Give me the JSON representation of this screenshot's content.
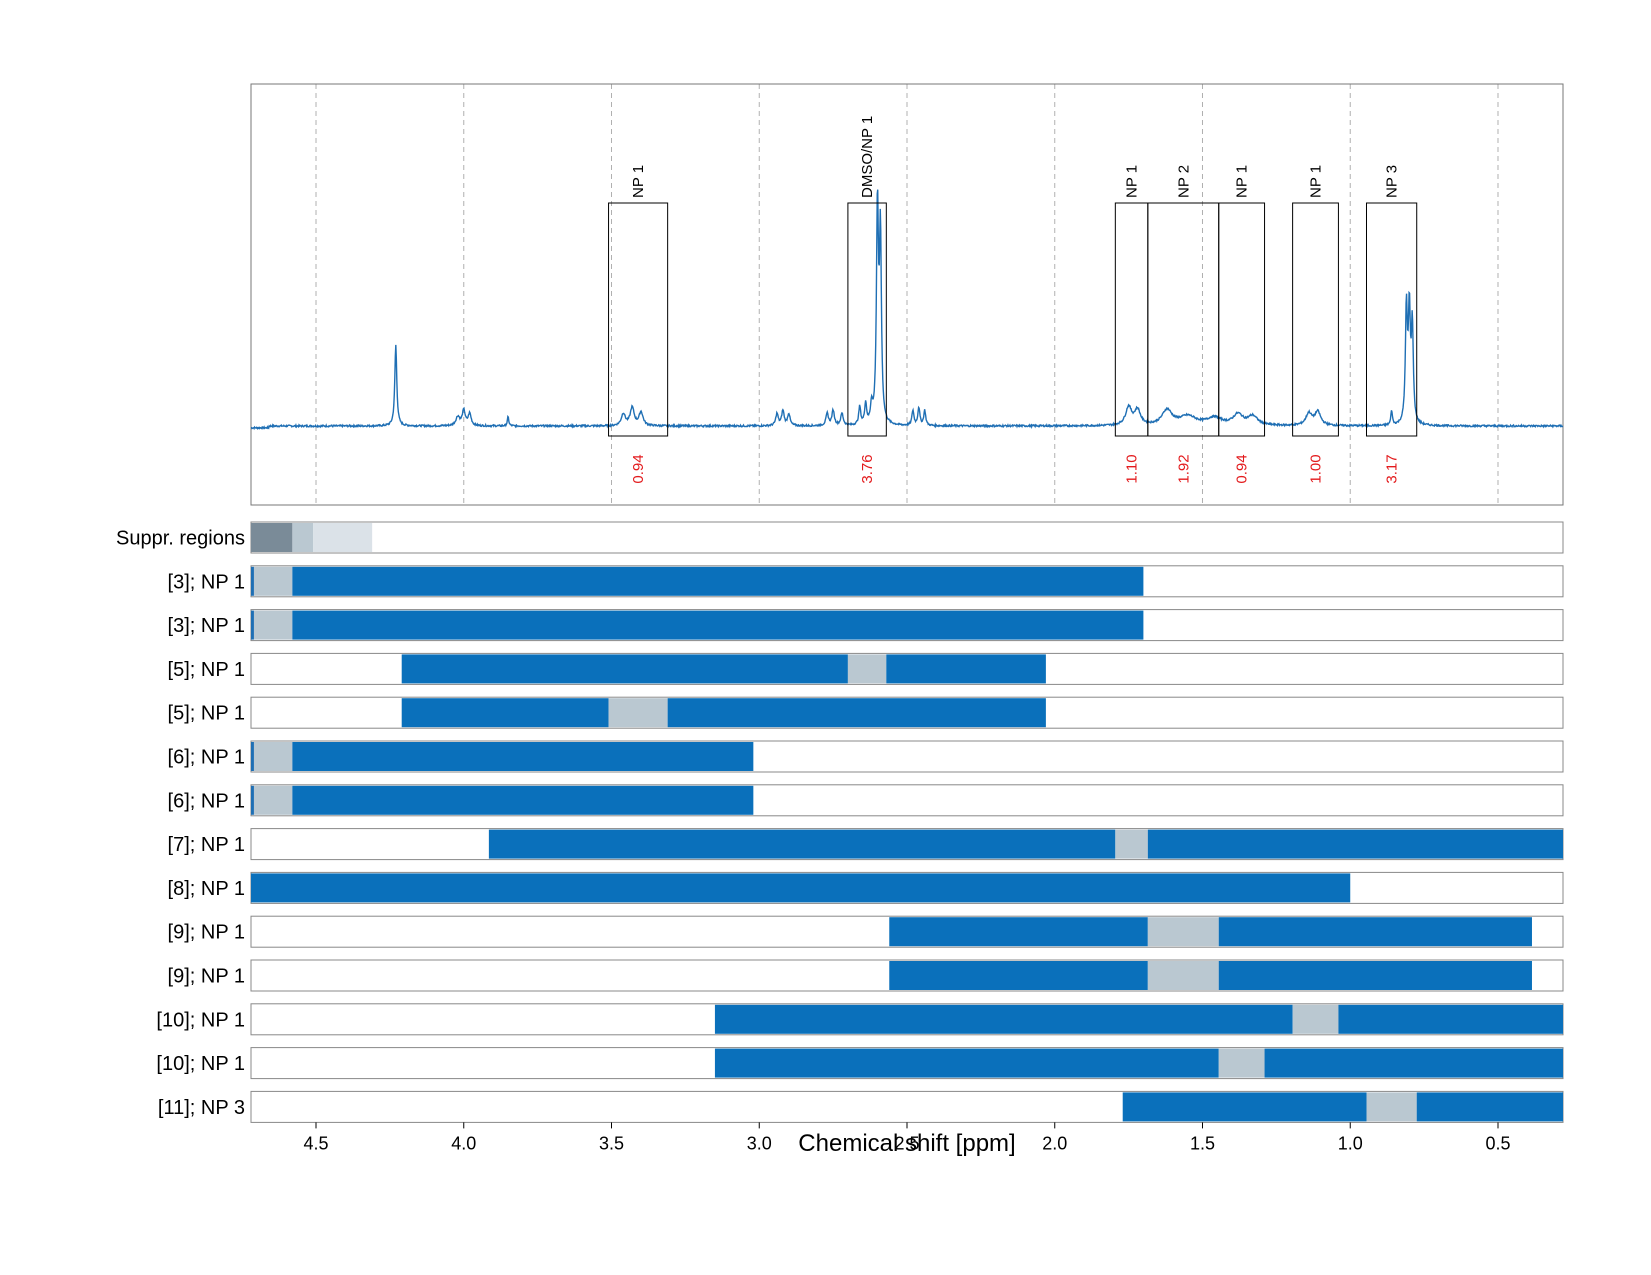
{
  "chart_data": {
    "type": "line",
    "xlabel": "Chemical shift [ppm]",
    "xlim": [
      4.72,
      0.28
    ],
    "x_reversed": true,
    "xticks": [
      4.5,
      4.0,
      3.5,
      3.0,
      2.5,
      2.0,
      1.5,
      1.0,
      0.5
    ],
    "xtick_labels": [
      "4.5",
      "4.0",
      "3.5",
      "3.0",
      "2.5",
      "2.0",
      "1.5",
      "1.0",
      "0.5"
    ],
    "grid": "vertical dashed",
    "spectrum_color": "#1f6fb4",
    "integral_color": "#e31a1c",
    "spectrum_peaks": [
      {
        "ppm": 4.23,
        "height": 0.27,
        "width": 0.004
      },
      {
        "ppm": 4.02,
        "height": 0.03,
        "width": 0.008
      },
      {
        "ppm": 4.0,
        "height": 0.05,
        "width": 0.006
      },
      {
        "ppm": 3.98,
        "height": 0.04,
        "width": 0.006
      },
      {
        "ppm": 3.85,
        "height": 0.03,
        "width": 0.003
      },
      {
        "ppm": 3.46,
        "height": 0.04,
        "width": 0.008
      },
      {
        "ppm": 3.43,
        "height": 0.06,
        "width": 0.008
      },
      {
        "ppm": 3.4,
        "height": 0.045,
        "width": 0.008
      },
      {
        "ppm": 2.94,
        "height": 0.04,
        "width": 0.005
      },
      {
        "ppm": 2.92,
        "height": 0.05,
        "width": 0.005
      },
      {
        "ppm": 2.9,
        "height": 0.04,
        "width": 0.005
      },
      {
        "ppm": 2.77,
        "height": 0.04,
        "width": 0.005
      },
      {
        "ppm": 2.75,
        "height": 0.05,
        "width": 0.005
      },
      {
        "ppm": 2.72,
        "height": 0.04,
        "width": 0.005
      },
      {
        "ppm": 2.66,
        "height": 0.06,
        "width": 0.004
      },
      {
        "ppm": 2.64,
        "height": 0.07,
        "width": 0.004
      },
      {
        "ppm": 2.62,
        "height": 0.06,
        "width": 0.004
      },
      {
        "ppm": 2.6,
        "height": 0.72,
        "width": 0.004
      },
      {
        "ppm": 2.59,
        "height": 0.62,
        "width": 0.004
      },
      {
        "ppm": 2.48,
        "height": 0.05,
        "width": 0.004
      },
      {
        "ppm": 2.46,
        "height": 0.06,
        "width": 0.004
      },
      {
        "ppm": 2.44,
        "height": 0.05,
        "width": 0.004
      },
      {
        "ppm": 1.75,
        "height": 0.06,
        "width": 0.012
      },
      {
        "ppm": 1.72,
        "height": 0.05,
        "width": 0.012
      },
      {
        "ppm": 1.62,
        "height": 0.05,
        "width": 0.02
      },
      {
        "ppm": 1.55,
        "height": 0.03,
        "width": 0.035
      },
      {
        "ppm": 1.46,
        "height": 0.025,
        "width": 0.03
      },
      {
        "ppm": 1.38,
        "height": 0.035,
        "width": 0.02
      },
      {
        "ppm": 1.33,
        "height": 0.03,
        "width": 0.02
      },
      {
        "ppm": 1.14,
        "height": 0.04,
        "width": 0.012
      },
      {
        "ppm": 1.11,
        "height": 0.045,
        "width": 0.012
      },
      {
        "ppm": 0.86,
        "height": 0.05,
        "width": 0.003
      },
      {
        "ppm": 0.81,
        "height": 0.38,
        "width": 0.004
      },
      {
        "ppm": 0.8,
        "height": 0.36,
        "width": 0.004
      },
      {
        "ppm": 0.79,
        "height": 0.32,
        "width": 0.004
      }
    ],
    "peak_annotations": [
      {
        "label": "NP 1",
        "ppm_from": 3.51,
        "ppm_to": 3.31,
        "integral": "0.94"
      },
      {
        "label": "DMSO/NP 1",
        "ppm_from": 2.7,
        "ppm_to": 2.57,
        "integral": "3.76"
      },
      {
        "label": "NP 1",
        "ppm_from": 1.795,
        "ppm_to": 1.685,
        "integral": "1.10"
      },
      {
        "label": "NP 2",
        "ppm_from": 1.685,
        "ppm_to": 1.445,
        "integral": "1.92"
      },
      {
        "label": "NP 1",
        "ppm_from": 1.445,
        "ppm_to": 1.29,
        "integral": "0.94"
      },
      {
        "label": "NP 1",
        "ppm_from": 1.195,
        "ppm_to": 1.04,
        "integral": "1.00"
      },
      {
        "label": "NP 3",
        "ppm_from": 0.945,
        "ppm_to": 0.775,
        "integral": "3.17"
      }
    ],
    "rows": [
      {
        "label": "Suppr. regions",
        "segments": [
          {
            "from": 4.72,
            "to": 4.58,
            "color": "#7a8b98"
          },
          {
            "from": 4.58,
            "to": 4.51,
            "color": "#bac8d1"
          },
          {
            "from": 4.51,
            "to": 4.31,
            "color": "#dbe2e8"
          }
        ]
      },
      {
        "label": "[3]; NP 1",
        "segments": [
          {
            "from": 4.72,
            "to": 4.71,
            "color": "#1f6fb4"
          },
          {
            "from": 4.71,
            "to": 4.58,
            "color": "#bac8d1"
          },
          {
            "from": 4.58,
            "to": 1.7,
            "color": "#0a70bb"
          }
        ]
      },
      {
        "label": "[3]; NP 1",
        "segments": [
          {
            "from": 4.72,
            "to": 4.71,
            "color": "#1f6fb4"
          },
          {
            "from": 4.71,
            "to": 4.58,
            "color": "#bac8d1"
          },
          {
            "from": 4.58,
            "to": 1.7,
            "color": "#0a70bb"
          }
        ]
      },
      {
        "label": "[5]; NP 1",
        "segments": [
          {
            "from": 4.21,
            "to": 2.7,
            "color": "#0a70bb"
          },
          {
            "from": 2.7,
            "to": 2.57,
            "color": "#bac8d1"
          },
          {
            "from": 2.57,
            "to": 2.03,
            "color": "#0a70bb"
          }
        ]
      },
      {
        "label": "[5]; NP 1",
        "segments": [
          {
            "from": 4.21,
            "to": 3.51,
            "color": "#0a70bb"
          },
          {
            "from": 3.51,
            "to": 3.31,
            "color": "#bac8d1"
          },
          {
            "from": 3.31,
            "to": 2.03,
            "color": "#0a70bb"
          }
        ]
      },
      {
        "label": "[6]; NP 1",
        "segments": [
          {
            "from": 4.72,
            "to": 4.71,
            "color": "#1f6fb4"
          },
          {
            "from": 4.71,
            "to": 4.58,
            "color": "#bac8d1"
          },
          {
            "from": 4.58,
            "to": 3.02,
            "color": "#0a70bb"
          }
        ]
      },
      {
        "label": "[6]; NP 1",
        "segments": [
          {
            "from": 4.72,
            "to": 4.71,
            "color": "#1f6fb4"
          },
          {
            "from": 4.71,
            "to": 4.58,
            "color": "#bac8d1"
          },
          {
            "from": 4.58,
            "to": 3.02,
            "color": "#0a70bb"
          }
        ]
      },
      {
        "label": "[7]; NP 1",
        "segments": [
          {
            "from": 3.915,
            "to": 1.795,
            "color": "#0a70bb"
          },
          {
            "from": 1.795,
            "to": 1.685,
            "color": "#bac8d1"
          },
          {
            "from": 1.685,
            "to": 0.28,
            "color": "#0a70bb"
          }
        ]
      },
      {
        "label": "[8]; NP 1",
        "segments": [
          {
            "from": 4.72,
            "to": 1.0,
            "color": "#0a70bb"
          }
        ]
      },
      {
        "label": "[9]; NP 1",
        "segments": [
          {
            "from": 2.56,
            "to": 1.685,
            "color": "#0a70bb"
          },
          {
            "from": 1.685,
            "to": 1.445,
            "color": "#bac8d1"
          },
          {
            "from": 1.445,
            "to": 0.385,
            "color": "#0a70bb"
          }
        ]
      },
      {
        "label": "[9]; NP 1",
        "segments": [
          {
            "from": 2.56,
            "to": 1.685,
            "color": "#0a70bb"
          },
          {
            "from": 1.685,
            "to": 1.445,
            "color": "#bac8d1"
          },
          {
            "from": 1.445,
            "to": 0.385,
            "color": "#0a70bb"
          }
        ]
      },
      {
        "label": "[10]; NP 1",
        "segments": [
          {
            "from": 3.15,
            "to": 1.195,
            "color": "#0a70bb"
          },
          {
            "from": 1.195,
            "to": 1.04,
            "color": "#bac8d1"
          },
          {
            "from": 1.04,
            "to": 0.28,
            "color": "#0a70bb"
          }
        ]
      },
      {
        "label": "[10]; NP 1",
        "segments": [
          {
            "from": 3.15,
            "to": 1.445,
            "color": "#0a70bb"
          },
          {
            "from": 1.445,
            "to": 1.29,
            "color": "#bac8d1"
          },
          {
            "from": 1.29,
            "to": 0.28,
            "color": "#0a70bb"
          }
        ]
      },
      {
        "label": "[11]; NP 3",
        "segments": [
          {
            "from": 1.77,
            "to": 0.945,
            "color": "#0a70bb"
          },
          {
            "from": 0.945,
            "to": 0.775,
            "color": "#bac8d1"
          },
          {
            "from": 0.775,
            "to": 0.28,
            "color": "#0a70bb"
          }
        ]
      }
    ]
  }
}
